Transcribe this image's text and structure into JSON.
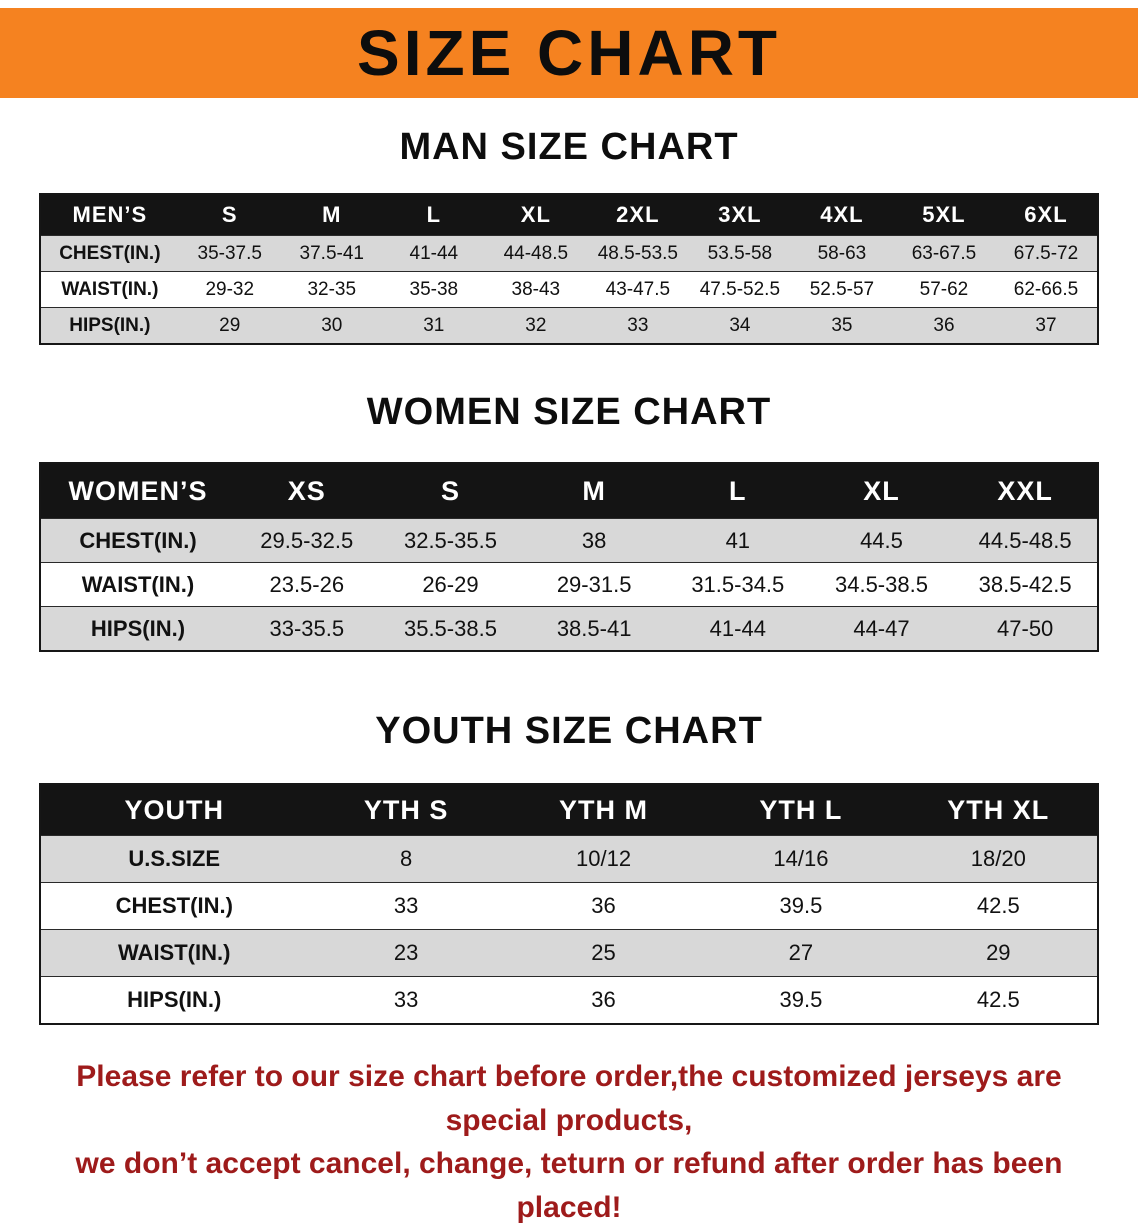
{
  "banner": {
    "title": "SIZE CHART"
  },
  "colors": {
    "accent": "#f58220",
    "table_header_bg": "#141414",
    "row_stripe": "#d8d8d8",
    "footer_text": "#9e1b1b"
  },
  "chart_data": [
    {
      "type": "table",
      "title": "MAN SIZE CHART",
      "columns": [
        "MEN’S",
        "S",
        "M",
        "L",
        "XL",
        "2XL",
        "3XL",
        "4XL",
        "5XL",
        "6XL"
      ],
      "rows": [
        [
          "CHEST(IN.)",
          "35-37.5",
          "37.5-41",
          "41-44",
          "44-48.5",
          "48.5-53.5",
          "53.5-58",
          "58-63",
          "63-67.5",
          "67.5-72"
        ],
        [
          "WAIST(IN.)",
          "29-32",
          "32-35",
          "35-38",
          "38-43",
          "43-47.5",
          "47.5-52.5",
          "52.5-57",
          "57-62",
          "62-66.5"
        ],
        [
          "HIPS(IN.)",
          "29",
          "30",
          "31",
          "32",
          "33",
          "34",
          "35",
          "36",
          "37"
        ]
      ]
    },
    {
      "type": "table",
      "title": "WOMEN SIZE CHART",
      "columns": [
        "WOMEN’S",
        "XS",
        "S",
        "M",
        "L",
        "XL",
        "XXL"
      ],
      "rows": [
        [
          "CHEST(IN.)",
          "29.5-32.5",
          "32.5-35.5",
          "38",
          "41",
          "44.5",
          "44.5-48.5"
        ],
        [
          "WAIST(IN.)",
          "23.5-26",
          "26-29",
          "29-31.5",
          "31.5-34.5",
          "34.5-38.5",
          "38.5-42.5"
        ],
        [
          "HIPS(IN.)",
          "33-35.5",
          "35.5-38.5",
          "38.5-41",
          "41-44",
          "44-47",
          "47-50"
        ]
      ]
    },
    {
      "type": "table",
      "title": "YOUTH SIZE CHART",
      "columns": [
        "YOUTH",
        "YTH S",
        "YTH M",
        "YTH L",
        "YTH XL"
      ],
      "rows": [
        [
          "U.S.SIZE",
          "8",
          "10/12",
          "14/16",
          "18/20"
        ],
        [
          "CHEST(IN.)",
          "33",
          "36",
          "39.5",
          "42.5"
        ],
        [
          "WAIST(IN.)",
          "23",
          "25",
          "27",
          "29"
        ],
        [
          "HIPS(IN.)",
          "33",
          "36",
          "39.5",
          "42.5"
        ]
      ]
    }
  ],
  "footer": {
    "line1": "Please refer to our size chart before order,the customized jerseys are special products,",
    "line2": "we don’t accept cancel, change, teturn or refund after order has been placed!"
  }
}
